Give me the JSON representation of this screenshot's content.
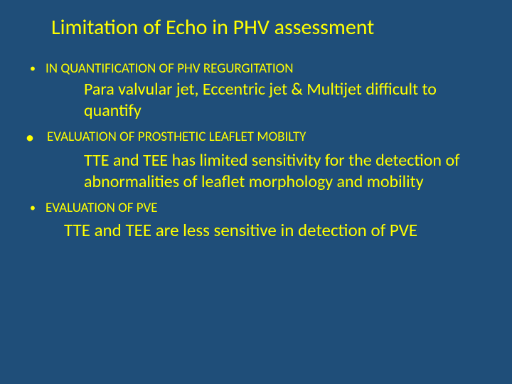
{
  "colors": {
    "background": "#1f4e79",
    "text": "#ffff00",
    "bullet": "#ffff00"
  },
  "typography": {
    "title_fontsize": 30,
    "heading_fontsize": 19,
    "body_fontsize": 24,
    "body_wide_fontsize": 25,
    "font_family": "Calibri"
  },
  "title": "Limitation of Echo in PHV assessment",
  "sections": [
    {
      "heading": "IN QUANTIFICATION OF PHV REGURGITATION",
      "body": "Para valvular jet, Eccentric jet  & Multijet difficult to quantify"
    },
    {
      "heading": "EVALUATION OF PROSTHETIC LEAFLET MOBILTY",
      "body": "TTE  and TEE  has limited sensitivity   for the detection of abnormalities  of leaflet morphology and mobility"
    },
    {
      "heading": "EVALUATION OF PVE",
      "body": "TTE and TEE are less sensitive in detection of PVE"
    }
  ]
}
